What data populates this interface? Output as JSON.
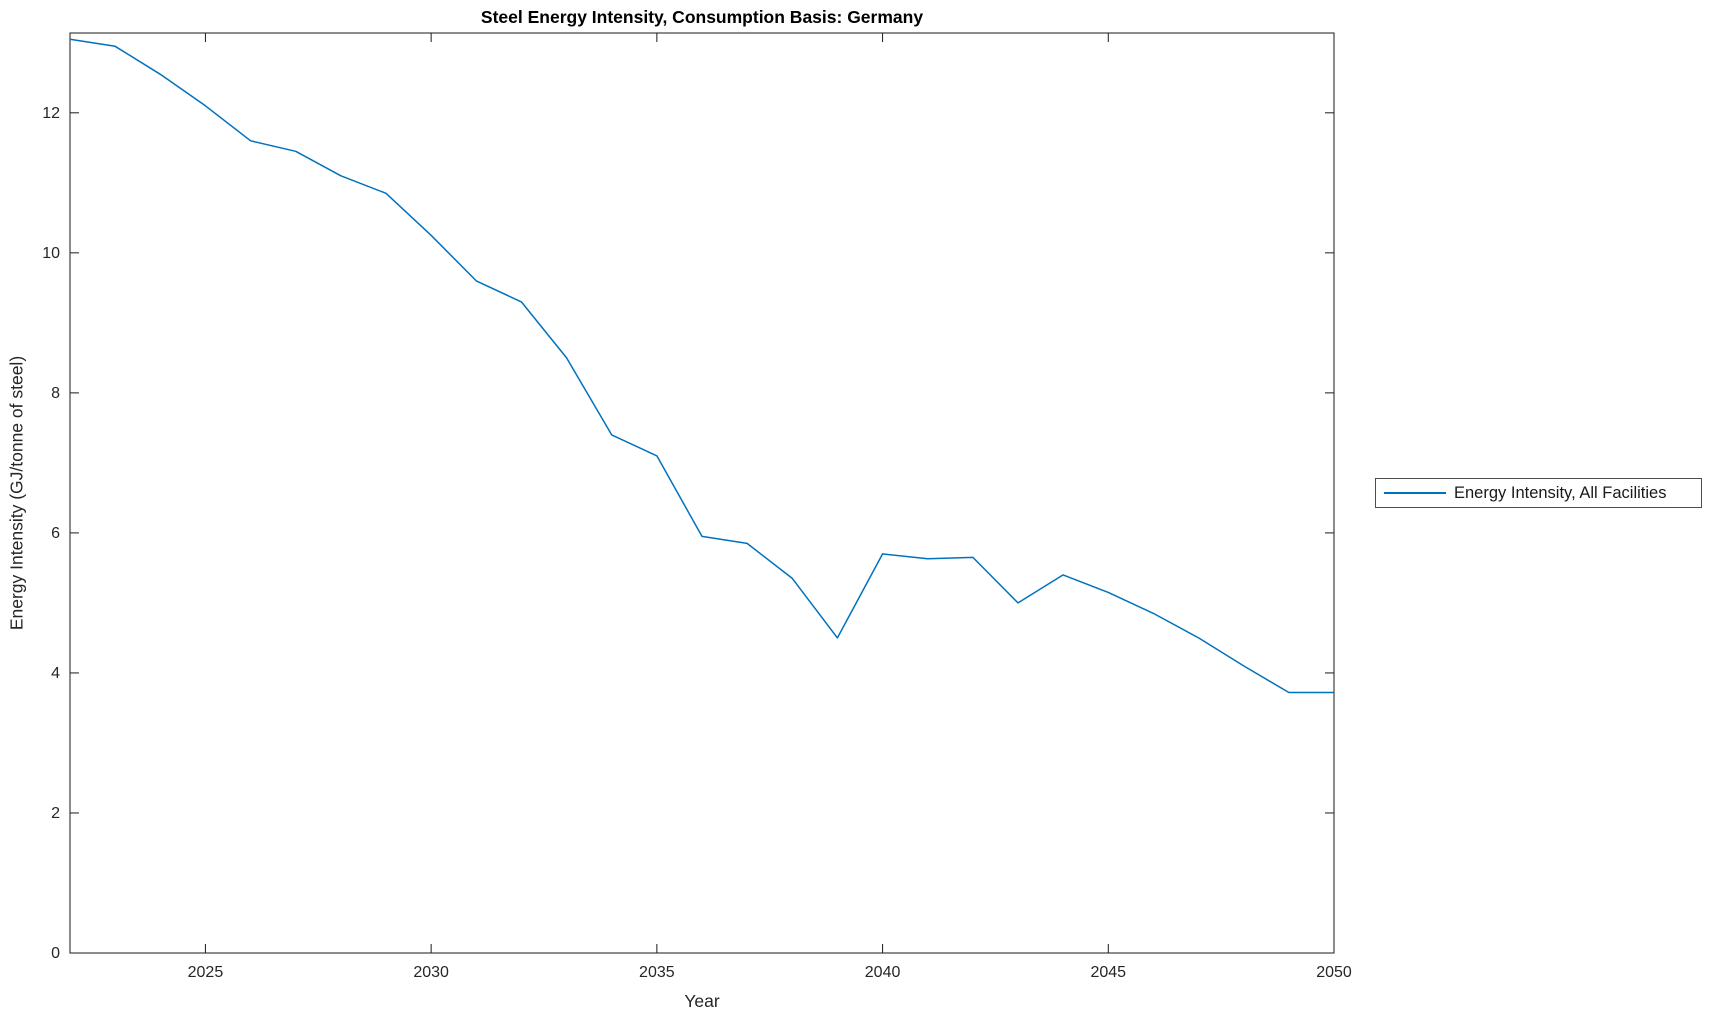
{
  "chart_data": {
    "type": "line",
    "title": "Steel Energy Intensity, Consumption Basis: Germany",
    "xlabel": "Year",
    "ylabel": "Energy Intensity (GJ/tonne of steel)",
    "legend": [
      "Energy Intensity, All Facilities"
    ],
    "legend_position": "outside-right",
    "grid": false,
    "box": true,
    "xlim": [
      2022,
      2050
    ],
    "ylim": [
      0,
      13.14
    ],
    "xticks": [
      2025,
      2030,
      2035,
      2040,
      2045,
      2050
    ],
    "yticks": [
      0,
      2,
      4,
      6,
      8,
      10,
      12
    ],
    "series": [
      {
        "name": "Energy Intensity, All Facilities",
        "color": "#0072BD",
        "x": [
          2022,
          2023,
          2024,
          2025,
          2026,
          2027,
          2028,
          2029,
          2030,
          2031,
          2032,
          2033,
          2034,
          2035,
          2036,
          2037,
          2038,
          2039,
          2040,
          2041,
          2042,
          2043,
          2044,
          2045,
          2046,
          2047,
          2048,
          2049,
          2050
        ],
        "y": [
          13.05,
          12.95,
          12.55,
          12.1,
          11.6,
          11.45,
          11.1,
          10.85,
          10.25,
          9.6,
          9.3,
          8.5,
          7.4,
          7.1,
          5.95,
          5.85,
          5.35,
          4.5,
          5.7,
          5.63,
          5.65,
          5.0,
          5.4,
          5.15,
          4.85,
          4.5,
          4.1,
          3.72,
          3.72
        ]
      }
    ],
    "colors": {
      "line": "#0072BD",
      "axis": "#1a1a1a",
      "text": "#262626",
      "legend_border": "#4d4d4d",
      "background": "#ffffff"
    }
  }
}
